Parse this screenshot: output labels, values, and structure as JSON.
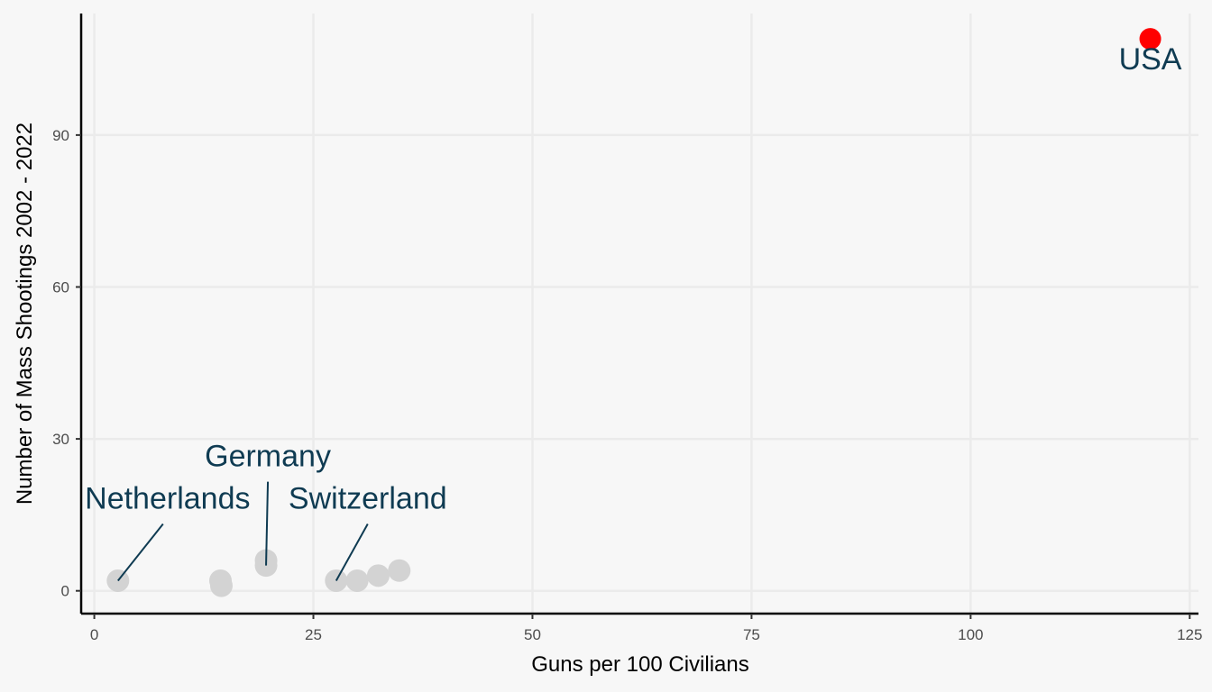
{
  "chart_data": {
    "type": "scatter",
    "xlabel": "Guns per 100 Civilians",
    "ylabel": "Number of Mass Shootings 2002 - 2022",
    "xlim": [
      -1.5,
      126
    ],
    "ylim": [
      -4.5,
      114
    ],
    "x_ticks": [
      0,
      25,
      50,
      75,
      100,
      125
    ],
    "y_ticks": [
      0,
      30,
      60,
      90
    ],
    "x_tick_labels": [
      "0",
      "25",
      "50",
      "75",
      "100",
      "125"
    ],
    "y_tick_labels": [
      "0",
      "30",
      "60",
      "90"
    ],
    "grid": true,
    "legend": "none",
    "colors": {
      "background": "#f7f7f7",
      "grid": "#ebebeb",
      "axis": "#000000",
      "point": "#d3d3d3",
      "highlight": "#ff0000",
      "label": "#0f3b52"
    },
    "points": [
      {
        "x": 2.7,
        "y": 2
      },
      {
        "x": 14.4,
        "y": 2
      },
      {
        "x": 14.5,
        "y": 1
      },
      {
        "x": 19.6,
        "y": 6
      },
      {
        "x": 19.6,
        "y": 5
      },
      {
        "x": 27.6,
        "y": 2
      },
      {
        "x": 30.0,
        "y": 2
      },
      {
        "x": 32.4,
        "y": 3
      },
      {
        "x": 34.8,
        "y": 4
      },
      {
        "x": 120.5,
        "y": 109,
        "highlight": true
      }
    ],
    "labels": [
      {
        "text": "Netherlands",
        "x": 2.7,
        "y": 2
      },
      {
        "text": "Germany",
        "x": 19.6,
        "y": 5
      },
      {
        "text": "Switzerland",
        "x": 27.6,
        "y": 2
      },
      {
        "text": "USA",
        "x": 120.5,
        "y": 109
      }
    ]
  }
}
